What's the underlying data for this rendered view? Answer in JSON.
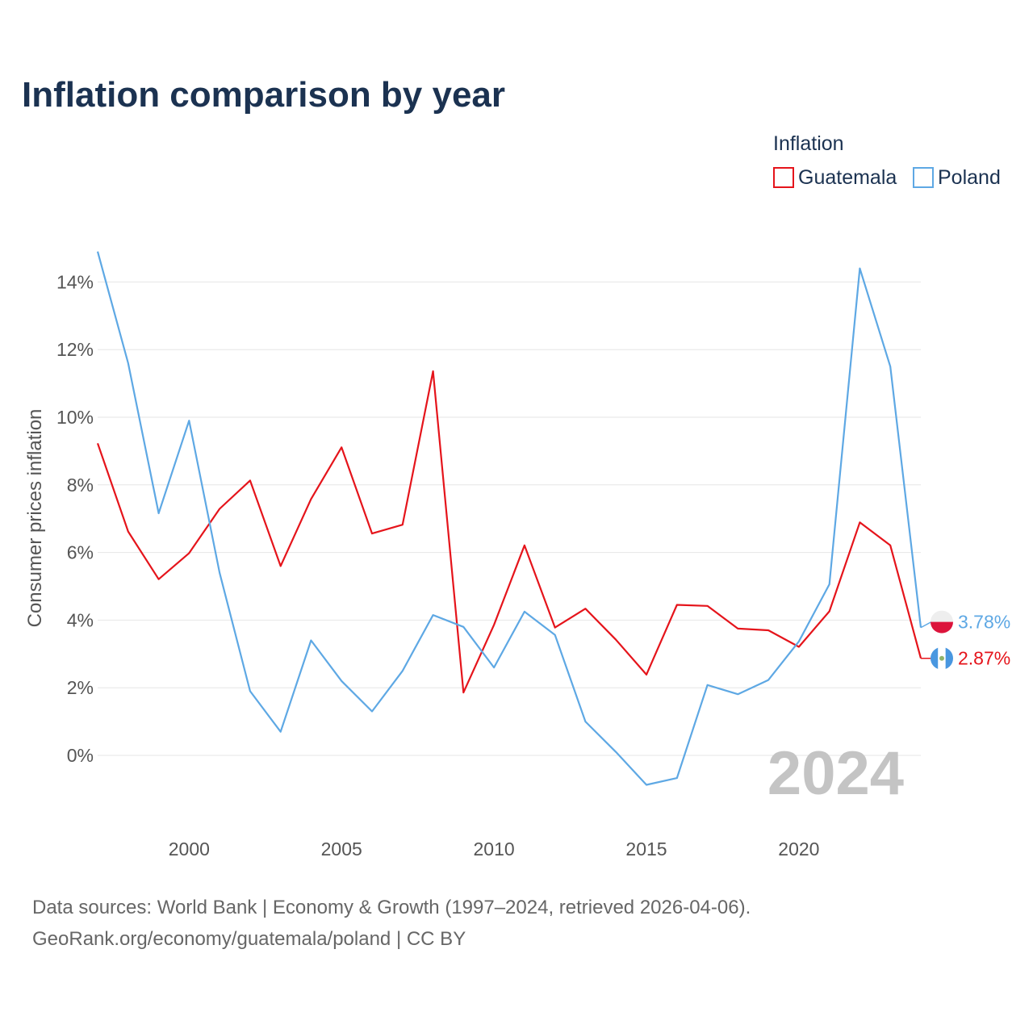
{
  "chart_data": {
    "type": "line",
    "title": "Inflation comparison by year",
    "ylabel": "Consumer prices inflation",
    "xlabel": "",
    "legend_title": "Inflation",
    "legend_position": "top-right",
    "xlim": [
      1997,
      2024
    ],
    "ylim": [
      -2,
      15
    ],
    "grid": true,
    "x_ticks": [
      2000,
      2005,
      2010,
      2015,
      2020
    ],
    "x_tick_labels": [
      "2000",
      "2005",
      "2010",
      "2015",
      "2020"
    ],
    "y_ticks": [
      0,
      2,
      4,
      6,
      8,
      10,
      12,
      14
    ],
    "y_tick_labels": [
      "0%",
      "2%",
      "4%",
      "6%",
      "8%",
      "10%",
      "12%",
      "14%"
    ],
    "highlight_year": "2024",
    "x": [
      1997,
      1998,
      1999,
      2000,
      2001,
      2002,
      2003,
      2004,
      2005,
      2006,
      2007,
      2008,
      2009,
      2010,
      2011,
      2012,
      2013,
      2014,
      2015,
      2016,
      2017,
      2018,
      2019,
      2020,
      2021,
      2022,
      2023,
      2024
    ],
    "series": [
      {
        "name": "Guatemala",
        "color": "#e5141b",
        "end_label": "2.87%",
        "flag": "guatemala-flag",
        "values": [
          9.23,
          6.62,
          5.21,
          5.98,
          7.29,
          8.13,
          5.6,
          7.58,
          9.11,
          6.56,
          6.82,
          11.36,
          1.86,
          3.86,
          6.21,
          3.78,
          4.34,
          3.42,
          2.39,
          4.45,
          4.42,
          3.75,
          3.7,
          3.21,
          4.26,
          6.89,
          6.21,
          2.87
        ]
      },
      {
        "name": "Poland",
        "color": "#5ea8e4",
        "end_label": "3.78%",
        "flag": "poland-flag",
        "values": [
          14.9,
          11.6,
          7.16,
          9.9,
          5.4,
          1.9,
          0.7,
          3.4,
          2.2,
          1.3,
          2.5,
          4.15,
          3.8,
          2.6,
          4.25,
          3.56,
          1.0,
          0.1,
          -0.87,
          -0.67,
          2.08,
          1.81,
          2.23,
          3.37,
          5.06,
          14.4,
          11.5,
          3.78
        ]
      }
    ]
  },
  "footer": {
    "source_line1": "Data sources: World Bank | Economy & Growth (1997–2024, retrieved 2026-04-06).",
    "source_line2": "GeoRank.org/economy/guatemala/poland | CC BY"
  }
}
